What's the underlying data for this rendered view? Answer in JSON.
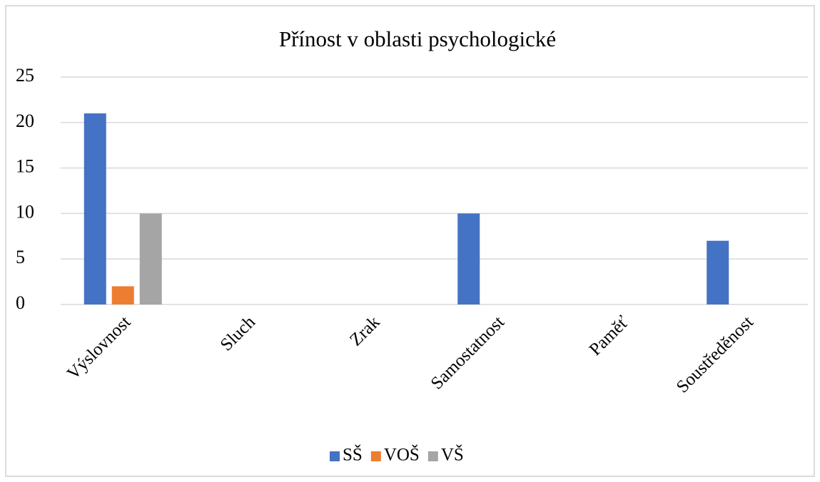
{
  "chart_data": {
    "type": "bar",
    "title": "Přínost v oblasti psychologické",
    "categories": [
      "Výslovnost",
      "Sluch",
      "Zrak",
      "Samostatnost",
      "Paměť",
      "Soustředěnost"
    ],
    "series": [
      {
        "name": "SŠ",
        "color": "#4472c4",
        "values": [
          21,
          0,
          0,
          10,
          0,
          7
        ]
      },
      {
        "name": "VOŠ",
        "color": "#ed7d31",
        "values": [
          2,
          0,
          0,
          0,
          0,
          0
        ]
      },
      {
        "name": "VŠ",
        "color": "#a5a5a5",
        "values": [
          10,
          0,
          0,
          0,
          0,
          0
        ]
      }
    ],
    "ylim": [
      0,
      25
    ],
    "yticks": [
      0,
      5,
      10,
      15,
      20,
      25
    ],
    "grid": true,
    "legend": "bottom"
  }
}
